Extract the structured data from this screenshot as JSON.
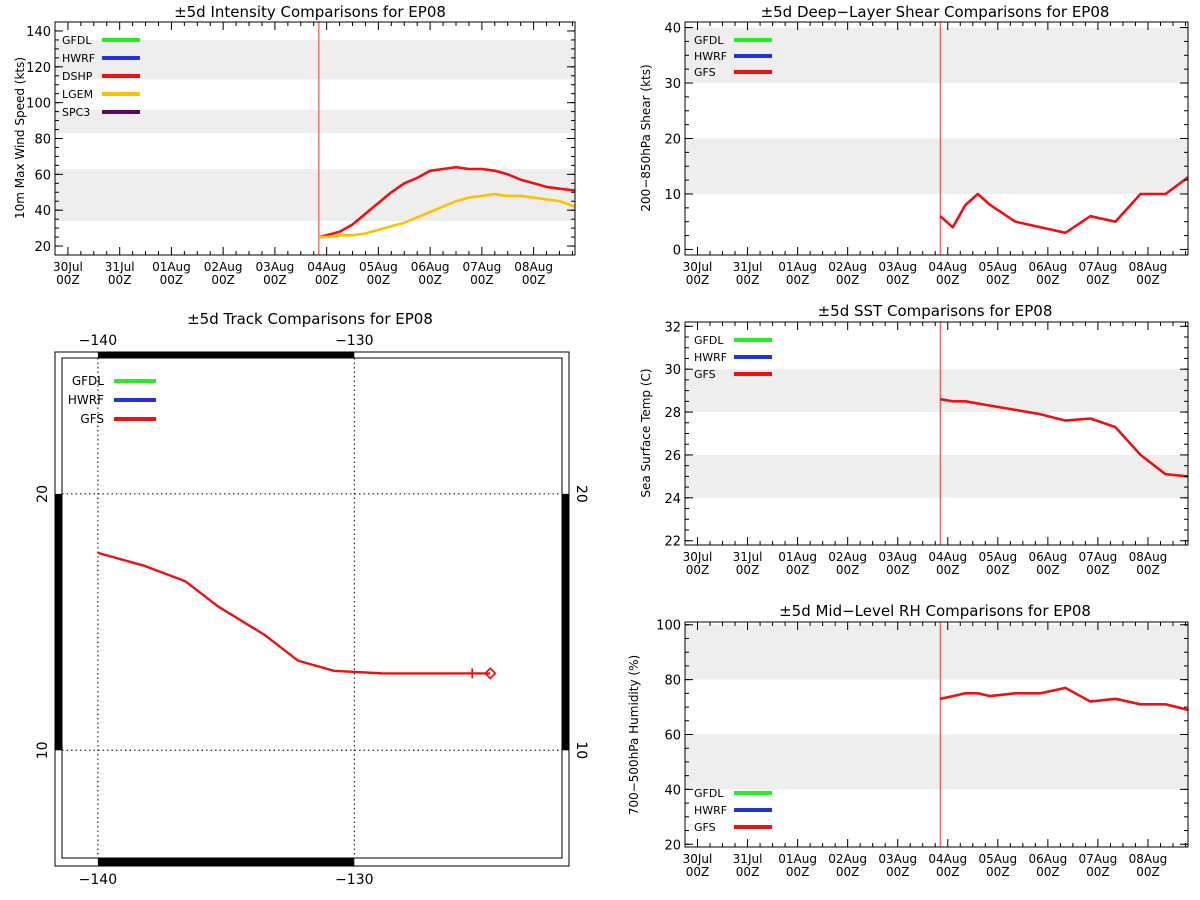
{
  "colors": {
    "GFDL": "#22ee22",
    "HWRF": "#2233dd",
    "DSHP": "#ee1111",
    "GFS": "#ee1111",
    "LGEM": "#ffc000",
    "SPC3": "#5a0a5a",
    "band": "#eeeeee",
    "init_line": "#ee3333"
  },
  "time_axis": {
    "ticks": [
      {
        "d": "30Jul",
        "h": "00Z"
      },
      {
        "d": "31Jul",
        "h": "00Z"
      },
      {
        "d": "01Aug",
        "h": "00Z"
      },
      {
        "d": "02Aug",
        "h": "00Z"
      },
      {
        "d": "03Aug",
        "h": "00Z"
      },
      {
        "d": "04Aug",
        "h": "00Z"
      },
      {
        "d": "05Aug",
        "h": "00Z"
      },
      {
        "d": "06Aug",
        "h": "00Z"
      },
      {
        "d": "07Aug",
        "h": "00Z"
      },
      {
        "d": "08Aug",
        "h": "00Z"
      }
    ],
    "xlim": [
      -0.25,
      9.8
    ],
    "init_time": 4.85
  },
  "chart_data": [
    {
      "id": "intensity",
      "type": "line",
      "title": "±5d Intensity Comparisons for EP08",
      "ylabel": "10m Max Wind Speed (kts)",
      "ylim": [
        15,
        145
      ],
      "yticks": [
        20,
        40,
        60,
        80,
        100,
        120,
        140
      ],
      "bands": [
        [
          34,
          63
        ],
        [
          83,
          96
        ],
        [
          113,
          135
        ]
      ],
      "legend": [
        "GFDL",
        "HWRF",
        "DSHP",
        "LGEM",
        "SPC3"
      ],
      "series": [
        {
          "name": "DSHP",
          "x": [
            4.85,
            5.0,
            5.25,
            5.5,
            5.75,
            6.0,
            6.25,
            6.5,
            6.75,
            7.0,
            7.25,
            7.5,
            7.75,
            8.0,
            8.25,
            8.5,
            8.75,
            9.0,
            9.25,
            9.5,
            9.8
          ],
          "y": [
            25,
            26,
            28,
            32,
            38,
            44,
            50,
            55,
            58,
            62,
            63,
            64,
            63,
            63,
            62,
            60,
            57,
            55,
            53,
            52,
            51
          ]
        },
        {
          "name": "LGEM",
          "x": [
            4.85,
            5.0,
            5.25,
            5.5,
            5.75,
            6.0,
            6.25,
            6.5,
            6.75,
            7.0,
            7.25,
            7.5,
            7.75,
            8.0,
            8.25,
            8.5,
            8.75,
            9.0,
            9.25,
            9.5,
            9.8
          ],
          "y": [
            25,
            25,
            26,
            26,
            27,
            29,
            31,
            33,
            36,
            39,
            42,
            45,
            47,
            48,
            49,
            48,
            48,
            47,
            46,
            45,
            42
          ]
        }
      ]
    },
    {
      "id": "shear",
      "type": "line",
      "title": "±5d Deep−Layer Shear Comparisons for EP08",
      "ylabel": "200−850hPa Shear (kts)",
      "ylim": [
        -1,
        41
      ],
      "yticks": [
        0,
        10,
        20,
        30,
        40
      ],
      "bands": [
        [
          10,
          20
        ],
        [
          30,
          40
        ]
      ],
      "legend": [
        "GFDL",
        "HWRF",
        "GFS"
      ],
      "series": [
        {
          "name": "GFS",
          "x": [
            4.85,
            5.1,
            5.35,
            5.6,
            5.85,
            6.35,
            7.35,
            7.85,
            8.35,
            8.85,
            9.35,
            9.8
          ],
          "y": [
            6,
            4,
            8,
            10,
            8,
            5,
            3,
            6,
            5,
            10,
            10,
            13
          ]
        }
      ]
    },
    {
      "id": "sst",
      "type": "line",
      "title": "±5d SST Comparisons for EP08",
      "ylabel": "Sea Surface Temp (C)",
      "ylim": [
        21.8,
        32.2
      ],
      "yticks": [
        22,
        24,
        26,
        28,
        30,
        32
      ],
      "bands": [
        [
          24,
          26
        ],
        [
          28,
          30
        ]
      ],
      "legend": [
        "GFDL",
        "HWRF",
        "GFS"
      ],
      "series": [
        {
          "name": "GFS",
          "x": [
            4.85,
            5.1,
            5.35,
            5.85,
            6.35,
            6.85,
            7.35,
            7.85,
            8.35,
            8.85,
            9.35,
            9.8
          ],
          "y": [
            28.6,
            28.5,
            28.5,
            28.3,
            28.1,
            27.9,
            27.6,
            27.7,
            27.3,
            26.0,
            25.1,
            25.0
          ]
        }
      ]
    },
    {
      "id": "rh",
      "type": "line",
      "title": "±5d Mid−Level RH Comparisons for EP08",
      "ylabel": "700−500hPa Humidity (%)",
      "ylim": [
        19,
        101
      ],
      "yticks": [
        20,
        40,
        60,
        80,
        100
      ],
      "bands": [
        [
          40,
          60
        ],
        [
          80,
          100
        ]
      ],
      "legend": [
        "GFDL",
        "HWRF",
        "GFS"
      ],
      "series": [
        {
          "name": "GFS",
          "x": [
            4.85,
            5.1,
            5.35,
            5.6,
            5.85,
            6.35,
            6.85,
            7.35,
            7.85,
            8.35,
            8.85,
            9.35,
            9.8
          ],
          "y": [
            73,
            74,
            75,
            75,
            74,
            75,
            75,
            77,
            72,
            73,
            71,
            71,
            69
          ]
        }
      ]
    },
    {
      "id": "track",
      "type": "line",
      "title": "±5d Track Comparisons for EP08",
      "xlim": [
        -141.4,
        -121.9
      ],
      "ylim": [
        5.8,
        25.3
      ],
      "lon_ticks": [
        -140,
        -130
      ],
      "lat_ticks": [
        10,
        20
      ],
      "legend": [
        "GFDL",
        "HWRF",
        "GFS"
      ],
      "series": [
        {
          "name": "GFS",
          "lon": [
            -124.7,
            -125.4,
            -126.8,
            -128.9,
            -130.8,
            -132.2,
            -133.5,
            -135.3,
            -136.6,
            -138.2,
            -140.0
          ],
          "lat": [
            13.0,
            13.0,
            13.0,
            13.0,
            13.1,
            13.5,
            14.5,
            15.6,
            16.6,
            17.2,
            17.7
          ]
        }
      ]
    }
  ]
}
